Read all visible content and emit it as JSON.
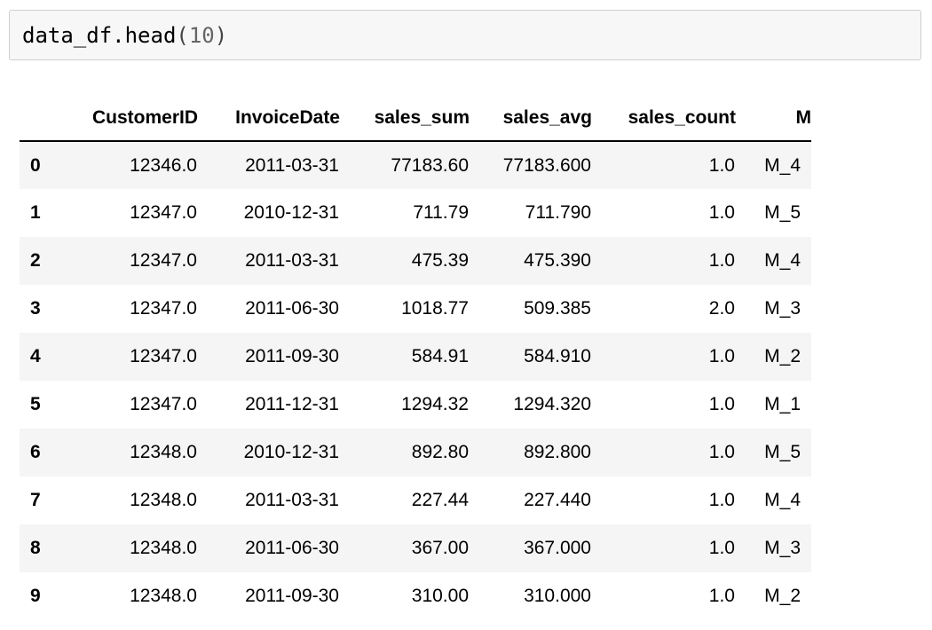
{
  "cell": {
    "fn_name": "data_df",
    "dot": ".",
    "method": "head",
    "open_paren": "(",
    "arg": "10",
    "close_paren": ")"
  },
  "table": {
    "columns": [
      "",
      "CustomerID",
      "InvoiceDate",
      "sales_sum",
      "sales_avg",
      "sales_count",
      "M"
    ],
    "rows": [
      {
        "index": "0",
        "CustomerID": "12346.0",
        "InvoiceDate": "2011-03-31",
        "sales_sum": "77183.60",
        "sales_avg": "77183.600",
        "sales_count": "1.0",
        "M": "M_4"
      },
      {
        "index": "1",
        "CustomerID": "12347.0",
        "InvoiceDate": "2010-12-31",
        "sales_sum": "711.79",
        "sales_avg": "711.790",
        "sales_count": "1.0",
        "M": "M_5"
      },
      {
        "index": "2",
        "CustomerID": "12347.0",
        "InvoiceDate": "2011-03-31",
        "sales_sum": "475.39",
        "sales_avg": "475.390",
        "sales_count": "1.0",
        "M": "M_4"
      },
      {
        "index": "3",
        "CustomerID": "12347.0",
        "InvoiceDate": "2011-06-30",
        "sales_sum": "1018.77",
        "sales_avg": "509.385",
        "sales_count": "2.0",
        "M": "M_3"
      },
      {
        "index": "4",
        "CustomerID": "12347.0",
        "InvoiceDate": "2011-09-30",
        "sales_sum": "584.91",
        "sales_avg": "584.910",
        "sales_count": "1.0",
        "M": "M_2"
      },
      {
        "index": "5",
        "CustomerID": "12347.0",
        "InvoiceDate": "2011-12-31",
        "sales_sum": "1294.32",
        "sales_avg": "1294.320",
        "sales_count": "1.0",
        "M": "M_1"
      },
      {
        "index": "6",
        "CustomerID": "12348.0",
        "InvoiceDate": "2010-12-31",
        "sales_sum": "892.80",
        "sales_avg": "892.800",
        "sales_count": "1.0",
        "M": "M_5"
      },
      {
        "index": "7",
        "CustomerID": "12348.0",
        "InvoiceDate": "2011-03-31",
        "sales_sum": "227.44",
        "sales_avg": "227.440",
        "sales_count": "1.0",
        "M": "M_4"
      },
      {
        "index": "8",
        "CustomerID": "12348.0",
        "InvoiceDate": "2011-06-30",
        "sales_sum": "367.00",
        "sales_avg": "367.000",
        "sales_count": "1.0",
        "M": "M_3"
      },
      {
        "index": "9",
        "CustomerID": "12348.0",
        "InvoiceDate": "2011-09-30",
        "sales_sum": "310.00",
        "sales_avg": "310.000",
        "sales_count": "1.0",
        "M": "M_2"
      }
    ]
  },
  "colors": {
    "cell_background": "#f7f7f7",
    "cell_border": "#cfcfcf",
    "row_stripe": "#f5f5f5",
    "number_token": "#666666"
  }
}
